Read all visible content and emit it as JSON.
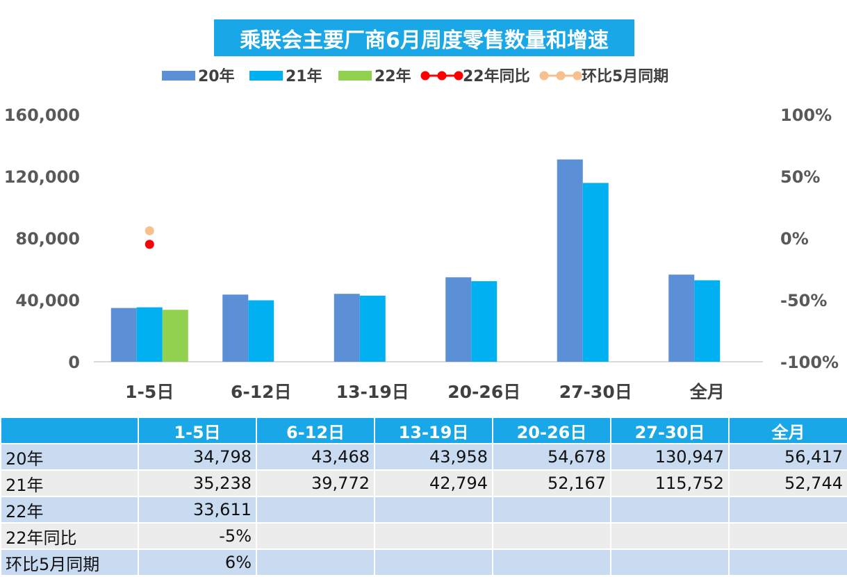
{
  "chart_data": {
    "type": "bar",
    "title": "乘联会主要厂商6月周度零售数量和增速",
    "categories": [
      "1-5日",
      "6-12日",
      "13-19日",
      "20-26日",
      "27-30日",
      "全月"
    ],
    "series": [
      {
        "name": "20年",
        "type": "bar",
        "axis": "left",
        "color": "#5b8fd6",
        "values": [
          34798,
          43468,
          43958,
          54678,
          130947,
          56417
        ]
      },
      {
        "name": "21年",
        "type": "bar",
        "axis": "left",
        "color": "#00b0f0",
        "values": [
          35238,
          39772,
          42794,
          52167,
          115752,
          52744
        ]
      },
      {
        "name": "22年",
        "type": "bar",
        "axis": "left",
        "color": "#92d050",
        "values": [
          33611,
          null,
          null,
          null,
          null,
          null
        ]
      },
      {
        "name": "22年同比",
        "type": "line",
        "axis": "right",
        "color": "#ff0000",
        "values": [
          -0.05,
          null,
          null,
          null,
          null,
          null
        ]
      },
      {
        "name": "环比5月同期",
        "type": "line",
        "axis": "right",
        "color": "#f8c08f",
        "values": [
          0.06,
          null,
          null,
          null,
          null,
          null
        ]
      }
    ],
    "y_left": {
      "min": 0,
      "max": 160000,
      "ticks": [
        "0",
        "40,000",
        "80,000",
        "120,000",
        "160,000"
      ]
    },
    "y_right": {
      "min": -1,
      "max": 1,
      "ticks": [
        "-100%",
        "-50%",
        "0%",
        "50%",
        "100%"
      ]
    },
    "legend_position": "top",
    "grid": false
  },
  "table": {
    "header": [
      "",
      "1-5日",
      "6-12日",
      "13-19日",
      "20-26日",
      "27-30日",
      "全月"
    ],
    "rows": [
      [
        "20年",
        "34,798",
        "43,468",
        "43,958",
        "54,678",
        "130,947",
        "56,417"
      ],
      [
        "21年",
        "35,238",
        "39,772",
        "42,794",
        "52,167",
        "115,752",
        "52,744"
      ],
      [
        "22年",
        "33,611",
        "",
        "",
        "",
        "",
        ""
      ],
      [
        "22年同比",
        "-5%",
        "",
        "",
        "",
        "",
        ""
      ],
      [
        "环比5月同期",
        "6%",
        "",
        "",
        "",
        "",
        ""
      ]
    ]
  }
}
